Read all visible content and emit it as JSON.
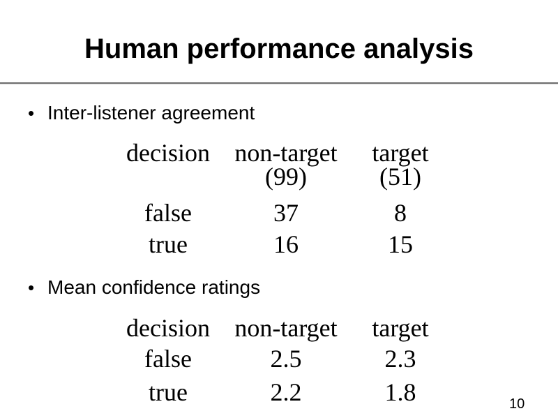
{
  "title": "Human performance analysis",
  "page_number": "10",
  "bullets": {
    "dot": "•",
    "inter_listener": "Inter-listener agreement",
    "mean_confidence": "Mean confidence ratings"
  },
  "agreement_table": {
    "headers": [
      "decision",
      "non-target",
      "target"
    ],
    "counts": [
      "",
      "(99)",
      "(51)"
    ],
    "rows": [
      {
        "decision": "false",
        "non_target": "37",
        "target": "8"
      },
      {
        "decision": "true",
        "non_target": "16",
        "target": "15"
      }
    ]
  },
  "confidence_table": {
    "headers": [
      "decision",
      "non-target",
      "target"
    ],
    "rows": [
      {
        "decision": "false",
        "non_target": "2.5",
        "target": "2.3"
      },
      {
        "decision": "true",
        "non_target": "2.2",
        "target": "1.8"
      }
    ]
  }
}
